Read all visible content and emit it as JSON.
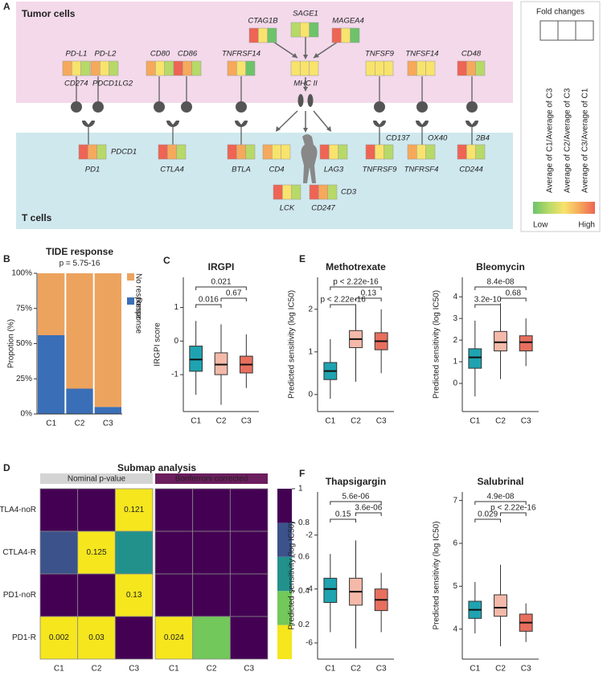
{
  "panel_labels": [
    "A",
    "B",
    "C",
    "D",
    "E",
    "F"
  ],
  "diagram": {
    "compartments": [
      "Tumor cells",
      "T cells"
    ],
    "genes": [
      {
        "label": "PD-L1",
        "alias": "CD274",
        "colors": [
          "#f6a95b",
          "#f8e36d",
          "#b7d968"
        ]
      },
      {
        "label": "PD-L2",
        "alias": "PDCD1LG2",
        "colors": [
          "#f6a95b",
          "#f8e36d",
          "#b7d968"
        ]
      },
      {
        "label": "CD80",
        "colors": [
          "#f6a95b",
          "#f8e36d",
          "#b7d968"
        ]
      },
      {
        "label": "CD86",
        "colors": [
          "#ee6455",
          "#f6a95b",
          "#b7d968"
        ]
      },
      {
        "label": "TNFRSF14",
        "colors": [
          "#f6a95b",
          "#f8e36d",
          "#6cc36a"
        ]
      },
      {
        "label": "CTAG1B",
        "colors": [
          "#ee6455",
          "#f8e36d",
          "#6cc36a"
        ]
      },
      {
        "label": "SAGE1",
        "colors": [
          "#b7d968",
          "#f8e36d",
          "#6cc36a"
        ]
      },
      {
        "label": "MAGEA4",
        "colors": [
          "#ee6455",
          "#f8e36d",
          "#6cc36a"
        ]
      },
      {
        "label": "MHC II",
        "colors": [
          "#f8e36d",
          "#f8e36d",
          "#f8e36d"
        ]
      },
      {
        "label": "TNFSF9",
        "colors": [
          "#f8e36d",
          "#f8e36d",
          "#f8e36d"
        ]
      },
      {
        "label": "TNFSF14",
        "colors": [
          "#f6a95b",
          "#f8e36d",
          "#f8e36d"
        ]
      },
      {
        "label": "CD48",
        "colors": [
          "#ee6455",
          "#f6a95b",
          "#b7d968"
        ]
      },
      {
        "label": "PD1",
        "alias": "PDCD1",
        "colors": [
          "#ee6455",
          "#f6a95b",
          "#b7d968"
        ]
      },
      {
        "label": "CTLA4",
        "colors": [
          "#ee6455",
          "#f6a95b",
          "#b7d968"
        ]
      },
      {
        "label": "BTLA",
        "colors": [
          "#ee6455",
          "#f6a95b",
          "#b7d968"
        ]
      },
      {
        "label": "CD4",
        "colors": [
          "#f6a95b",
          "#f8e36d",
          "#f8e36d"
        ]
      },
      {
        "label": "LAG3",
        "colors": [
          "#ee6455",
          "#f8e36d",
          "#b7d968"
        ]
      },
      {
        "label": "TNFRSF9",
        "alias": "CD137",
        "colors": [
          "#ee6455",
          "#f8e36d",
          "#b7d968"
        ]
      },
      {
        "label": "TNFRSF4",
        "alias": "OX40",
        "colors": [
          "#f6a95b",
          "#f8e36d",
          "#b7d968"
        ]
      },
      {
        "label": "CD244",
        "alias": "2B4",
        "colors": [
          "#ee6455",
          "#f8e36d",
          "#b7d968"
        ]
      },
      {
        "label": "LCK",
        "colors": [
          "#ee6455",
          "#f8e36d",
          "#b7d968"
        ]
      },
      {
        "label": "CD247",
        "alias": "CD3",
        "colors": [
          "#ee6455",
          "#f6a95b",
          "#b7d968"
        ]
      }
    ],
    "legend": {
      "title": "Fold changes",
      "columns": [
        "Average of C1/Average of C3",
        "Average of C2/Average of C3",
        "Average of C3/Average of C1"
      ],
      "scale_colors": [
        "#6cc36a",
        "#b7d968",
        "#f8e36d",
        "#f6a95b",
        "#ee6455"
      ],
      "scale_low": "Low",
      "scale_high": "High"
    }
  },
  "chart_data": [
    {
      "type": "bar",
      "stacked": true,
      "title": "TIDE response",
      "subtitle": "p = 5.75-16",
      "ylabel": "Propotion (%)",
      "categories": [
        "C1",
        "C2",
        "C3"
      ],
      "ylim": [
        0,
        100
      ],
      "yticks": [
        {
          "value": 0,
          "label": "0%"
        },
        {
          "value": 25,
          "label": "25%"
        },
        {
          "value": 50,
          "label": "50%"
        },
        {
          "value": 75,
          "label": "75%"
        },
        {
          "value": 100,
          "label": "100%"
        }
      ],
      "series": [
        {
          "name": "Response",
          "color": "#3a6fb7",
          "values": [
            56,
            18,
            5
          ]
        },
        {
          "name": "No response",
          "color": "#eca35e",
          "values": [
            44,
            82,
            95
          ]
        }
      ]
    },
    {
      "type": "box",
      "title": "IRGPI",
      "ylabel": "IRGPI score",
      "categories": [
        "C1",
        "C2",
        "C3"
      ],
      "colors": [
        "#1fa3b0",
        "#f4b9a9",
        "#e86f5e"
      ],
      "ylim": [
        -2.1,
        1.9
      ],
      "yticks": [
        -1,
        0,
        1
      ],
      "boxes": [
        {
          "whislo": -1.6,
          "q1": -0.9,
          "med": -0.55,
          "q3": -0.15,
          "whishi": 0.6
        },
        {
          "whislo": -1.9,
          "q1": -1.0,
          "med": -0.7,
          "q3": -0.35,
          "whishi": 0.5
        },
        {
          "whislo": -1.4,
          "q1": -0.95,
          "med": -0.7,
          "q3": -0.45,
          "whishi": 0.2
        }
      ],
      "comparisons": [
        "0.021",
        "0.016",
        "0.67"
      ]
    },
    {
      "type": "box",
      "title": "Methotrexate",
      "ylabel": "Predicted sensitivity (log IC50)",
      "categories": [
        "C1",
        "C2",
        "C3"
      ],
      "colors": [
        "#1fa3b0",
        "#f4b9a9",
        "#e86f5e"
      ],
      "ylim": [
        -0.4,
        2.75
      ],
      "yticks": [
        0,
        1,
        2
      ],
      "boxes": [
        {
          "whislo": -0.1,
          "q1": 0.35,
          "med": 0.55,
          "q3": 0.75,
          "whishi": 1.3
        },
        {
          "whislo": 0.3,
          "q1": 1.1,
          "med": 1.3,
          "q3": 1.5,
          "whishi": 2.1
        },
        {
          "whislo": 0.5,
          "q1": 1.05,
          "med": 1.25,
          "q3": 1.45,
          "whishi": 2.0
        }
      ],
      "comparisons": [
        "p < 2.22e-16",
        "p < 2.22e-16",
        "0.13"
      ]
    },
    {
      "type": "box",
      "title": "Bleomycin",
      "ylabel": "Predicted sensitivity (log IC50)",
      "categories": [
        "C1",
        "C2",
        "C3"
      ],
      "colors": [
        "#1fa3b0",
        "#f4b9a9",
        "#e86f5e"
      ],
      "ylim": [
        -1.3,
        4.9
      ],
      "yticks": [
        0,
        1,
        2,
        3,
        4
      ],
      "boxes": [
        {
          "whislo": -0.6,
          "q1": 0.7,
          "med": 1.2,
          "q3": 1.6,
          "whishi": 2.9
        },
        {
          "whislo": 0.2,
          "q1": 1.5,
          "med": 1.9,
          "q3": 2.4,
          "whishi": 3.7
        },
        {
          "whislo": 0.8,
          "q1": 1.5,
          "med": 1.9,
          "q3": 2.2,
          "whishi": 3.0
        }
      ],
      "comparisons": [
        "8.4e-08",
        "3.2e-10",
        "0.68"
      ]
    },
    {
      "type": "heatmap",
      "title": "Submap analysis",
      "rows": [
        "CTLA4-noR",
        "CTLA4-R",
        "PD1-noR",
        "PD1-R"
      ],
      "columns": [
        "C1",
        "C2",
        "C3"
      ],
      "clim": [
        0,
        1
      ],
      "colors": [
        "#f5e61e",
        "#72c85a",
        "#22918c",
        "#3b528b",
        "#440154"
      ],
      "cticks": [
        0.2,
        0.4,
        0.6,
        0.8,
        1
      ],
      "matrices": [
        {
          "name": "Nominal p-value",
          "header_color": "#d4d4d4",
          "values": [
            [
              1,
              1,
              0.121
            ],
            [
              0.7,
              0.125,
              0.5
            ],
            [
              1,
              1,
              0.13
            ],
            [
              0.002,
              0.03,
              1
            ]
          ],
          "value_labels": [
            [
              null,
              null,
              "0.121"
            ],
            [
              null,
              "0.125",
              null
            ],
            [
              null,
              null,
              "0.13"
            ],
            [
              "0.002",
              "0.03",
              null
            ]
          ]
        },
        {
          "name": "Bonferroni corrected",
          "header_color": "#6b1d5e",
          "values": [
            [
              1,
              1,
              1
            ],
            [
              1,
              1,
              1
            ],
            [
              1,
              1,
              1
            ],
            [
              0.024,
              0.3,
              1
            ]
          ],
          "value_labels": [
            [
              null,
              null,
              null
            ],
            [
              null,
              null,
              null
            ],
            [
              null,
              null,
              null
            ],
            [
              "0.024",
              null,
              null
            ]
          ]
        }
      ]
    },
    {
      "type": "box",
      "title": "Thapsigargin",
      "ylabel": "Predicted sensitivity (log IC50)",
      "categories": [
        "C1",
        "C2",
        "C3"
      ],
      "colors": [
        "#1fa3b0",
        "#f4b9a9",
        "#e86f5e"
      ],
      "ylim": [
        -6.6,
        -0.4
      ],
      "yticks": [
        -6,
        -4,
        -2
      ],
      "boxes": [
        {
          "whislo": -5.6,
          "q1": -4.5,
          "med": -4.0,
          "q3": -3.6,
          "whishi": -2.7
        },
        {
          "whislo": -6.2,
          "q1": -4.6,
          "med": -4.1,
          "q3": -3.6,
          "whishi": -2.2
        },
        {
          "whislo": -5.6,
          "q1": -4.8,
          "med": -4.4,
          "q3": -4.0,
          "whishi": -3.4
        }
      ],
      "comparisons": [
        "5.6e-06",
        "0.15",
        "3.6e-06"
      ]
    },
    {
      "type": "box",
      "title": "Salubrinal",
      "ylabel": "Predicted sensitivity (log IC50)",
      "categories": [
        "C1",
        "C2",
        "C3"
      ],
      "colors": [
        "#1fa3b0",
        "#f4b9a9",
        "#e86f5e"
      ],
      "ylim": [
        3.3,
        7.2
      ],
      "yticks": [
        4,
        5,
        6,
        7
      ],
      "boxes": [
        {
          "whislo": 3.9,
          "q1": 4.25,
          "med": 4.45,
          "q3": 4.65,
          "whishi": 5.1
        },
        {
          "whislo": 3.6,
          "q1": 4.3,
          "med": 4.5,
          "q3": 4.8,
          "whishi": 5.5
        },
        {
          "whislo": 3.7,
          "q1": 3.95,
          "med": 4.15,
          "q3": 4.35,
          "whishi": 4.6
        }
      ],
      "comparisons": [
        "4.9e-08",
        "0.029",
        "p < 2.22e-16"
      ]
    }
  ]
}
